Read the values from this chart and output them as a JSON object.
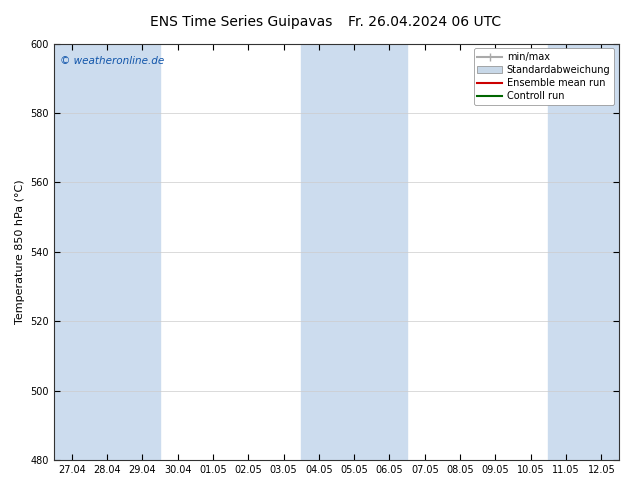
{
  "title_left": "ENS Time Series Guipavas",
  "title_right": "Fr. 26.04.2024 06 UTC",
  "ylabel": "Temperature 850 hPa (°C)",
  "ylim": [
    480,
    600
  ],
  "yticks": [
    480,
    500,
    520,
    540,
    560,
    580,
    600
  ],
  "x_labels": [
    "27.04",
    "28.04",
    "29.04",
    "30.04",
    "01.05",
    "02.05",
    "03.05",
    "04.05",
    "05.05",
    "06.05",
    "07.05",
    "08.05",
    "09.05",
    "10.05",
    "11.05",
    "12.05"
  ],
  "shaded_ranges": [
    [
      0,
      2
    ],
    [
      7,
      9
    ],
    [
      14,
      15
    ]
  ],
  "shade_color": "#ccdcee",
  "bg_color": "#ffffff",
  "plot_bg_color": "#ffffff",
  "watermark": "© weatheronline.de",
  "watermark_color": "#1155aa",
  "legend_items": [
    {
      "label": "min/max",
      "color": "#aaaaaa",
      "style": "minmax"
    },
    {
      "label": "Standardabweichung",
      "color": "#c8d8e8",
      "style": "bar"
    },
    {
      "label": "Ensemble mean run",
      "color": "#cc0000",
      "style": "line"
    },
    {
      "label": "Controll run",
      "color": "#006600",
      "style": "line"
    }
  ],
  "title_fontsize": 10,
  "tick_fontsize": 7,
  "ylabel_fontsize": 8,
  "legend_fontsize": 7
}
